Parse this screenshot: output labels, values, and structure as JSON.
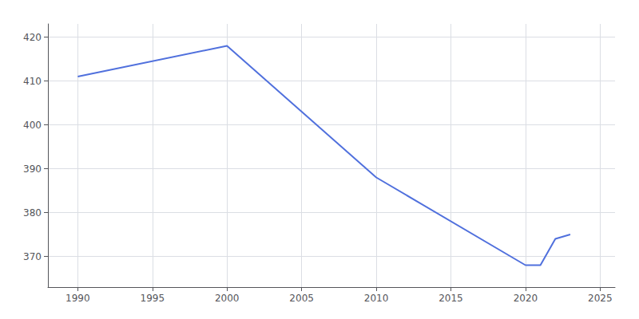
{
  "chart_data": {
    "type": "line",
    "x": [
      1990,
      2000,
      2010,
      2020,
      2021,
      2022,
      2023
    ],
    "values": [
      411,
      418,
      388,
      368,
      368,
      374,
      375
    ],
    "xlim": [
      1988,
      2026
    ],
    "xticks": [
      1990,
      1995,
      2000,
      2005,
      2010,
      2015,
      2020,
      2025
    ],
    "ylim": [
      363,
      423
    ],
    "yticks": [
      370,
      380,
      390,
      400,
      410,
      420
    ],
    "grid": true
  }
}
